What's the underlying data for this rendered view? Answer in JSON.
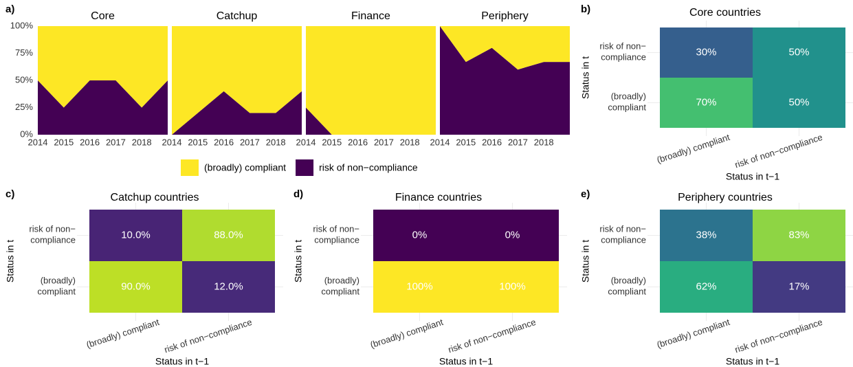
{
  "chart_data": [
    {
      "type": "area",
      "panel": "a)",
      "stacked": true,
      "x": [
        2014,
        2015,
        2016,
        2017,
        2018,
        2019
      ],
      "xlim": [
        2014,
        2019
      ],
      "xticks": [
        2014,
        2015,
        2016,
        2017,
        2018
      ],
      "ylim": [
        0,
        100
      ],
      "yticks": [
        {
          "value": 0,
          "label": "0%"
        },
        {
          "value": 25,
          "label": "25%"
        },
        {
          "value": 50,
          "label": "50%"
        },
        {
          "value": 75,
          "label": "75%"
        },
        {
          "value": 100,
          "label": "100%"
        }
      ],
      "series": [
        {
          "name": "risk of non−compliance",
          "color": "#440154"
        },
        {
          "name": "(broadly) compliant",
          "color": "#fde725"
        }
      ],
      "facets": [
        {
          "title": "Core",
          "values": [
            [
              50,
              25,
              50,
              50,
              25,
              50
            ],
            [
              50,
              75,
              50,
              50,
              75,
              50
            ]
          ]
        },
        {
          "title": "Catchup",
          "values": [
            [
              0,
              20,
              40,
              20,
              20,
              40
            ],
            [
              100,
              80,
              60,
              80,
              80,
              60
            ]
          ]
        },
        {
          "title": "Finance",
          "values": [
            [
              25,
              0,
              0,
              0,
              0,
              0
            ],
            [
              75,
              100,
              100,
              100,
              100,
              100
            ]
          ]
        },
        {
          "title": "Periphery",
          "values": [
            [
              100,
              67,
              80,
              60,
              67,
              67
            ],
            [
              0,
              33,
              20,
              40,
              33,
              33
            ]
          ]
        }
      ]
    },
    {
      "type": "heatmap",
      "panel": "b)",
      "title": "Core countries",
      "xlabel": "Status in t−1",
      "ylabel": "Status in t",
      "x_categories": [
        "(broadly) compliant",
        "risk of non−compliance"
      ],
      "y_categories": [
        "(broadly)\ncompliant",
        "risk of non−\ncompliance"
      ],
      "colorscale": "viridis",
      "clim": [
        0,
        100
      ],
      "values": [
        [
          70,
          50
        ],
        [
          30,
          50
        ]
      ],
      "value_labels": [
        [
          "70%",
          "50%"
        ],
        [
          "30%",
          "50%"
        ]
      ]
    },
    {
      "type": "heatmap",
      "panel": "c)",
      "title": "Catchup countries",
      "xlabel": "Status in t−1",
      "ylabel": "Status in t",
      "x_categories": [
        "(broadly) compliant",
        "risk of non−compliance"
      ],
      "y_categories": [
        "(broadly)\ncompliant",
        "risk of non−\ncompliance"
      ],
      "colorscale": "viridis",
      "clim": [
        0,
        100
      ],
      "values": [
        [
          90,
          12
        ],
        [
          10,
          88
        ]
      ],
      "value_labels": [
        [
          "90.0%",
          "12.0%"
        ],
        [
          "10.0%",
          "88.0%"
        ]
      ]
    },
    {
      "type": "heatmap",
      "panel": "d)",
      "title": "Finance countries",
      "xlabel": "Status in t−1",
      "ylabel": "Status in t",
      "x_categories": [
        "(broadly) compliant",
        "risk of non−compliance"
      ],
      "y_categories": [
        "(broadly)\ncompliant",
        "risk of non−\ncompliance"
      ],
      "colorscale": "viridis",
      "clim": [
        0,
        100
      ],
      "values": [
        [
          100,
          100
        ],
        [
          0,
          0
        ]
      ],
      "value_labels": [
        [
          "100%",
          "100%"
        ],
        [
          "0%",
          "0%"
        ]
      ]
    },
    {
      "type": "heatmap",
      "panel": "e)",
      "title": "Periphery countries",
      "xlabel": "Status in t−1",
      "ylabel": "Status in t",
      "x_categories": [
        "(broadly) compliant",
        "risk of non−compliance"
      ],
      "y_categories": [
        "(broadly)\ncompliant",
        "risk of non−\ncompliance"
      ],
      "colorscale": "viridis",
      "clim": [
        0,
        100
      ],
      "values": [
        [
          62,
          17
        ],
        [
          38,
          83
        ]
      ],
      "value_labels": [
        [
          "62%",
          "17%"
        ],
        [
          "38%",
          "83%"
        ]
      ]
    }
  ]
}
